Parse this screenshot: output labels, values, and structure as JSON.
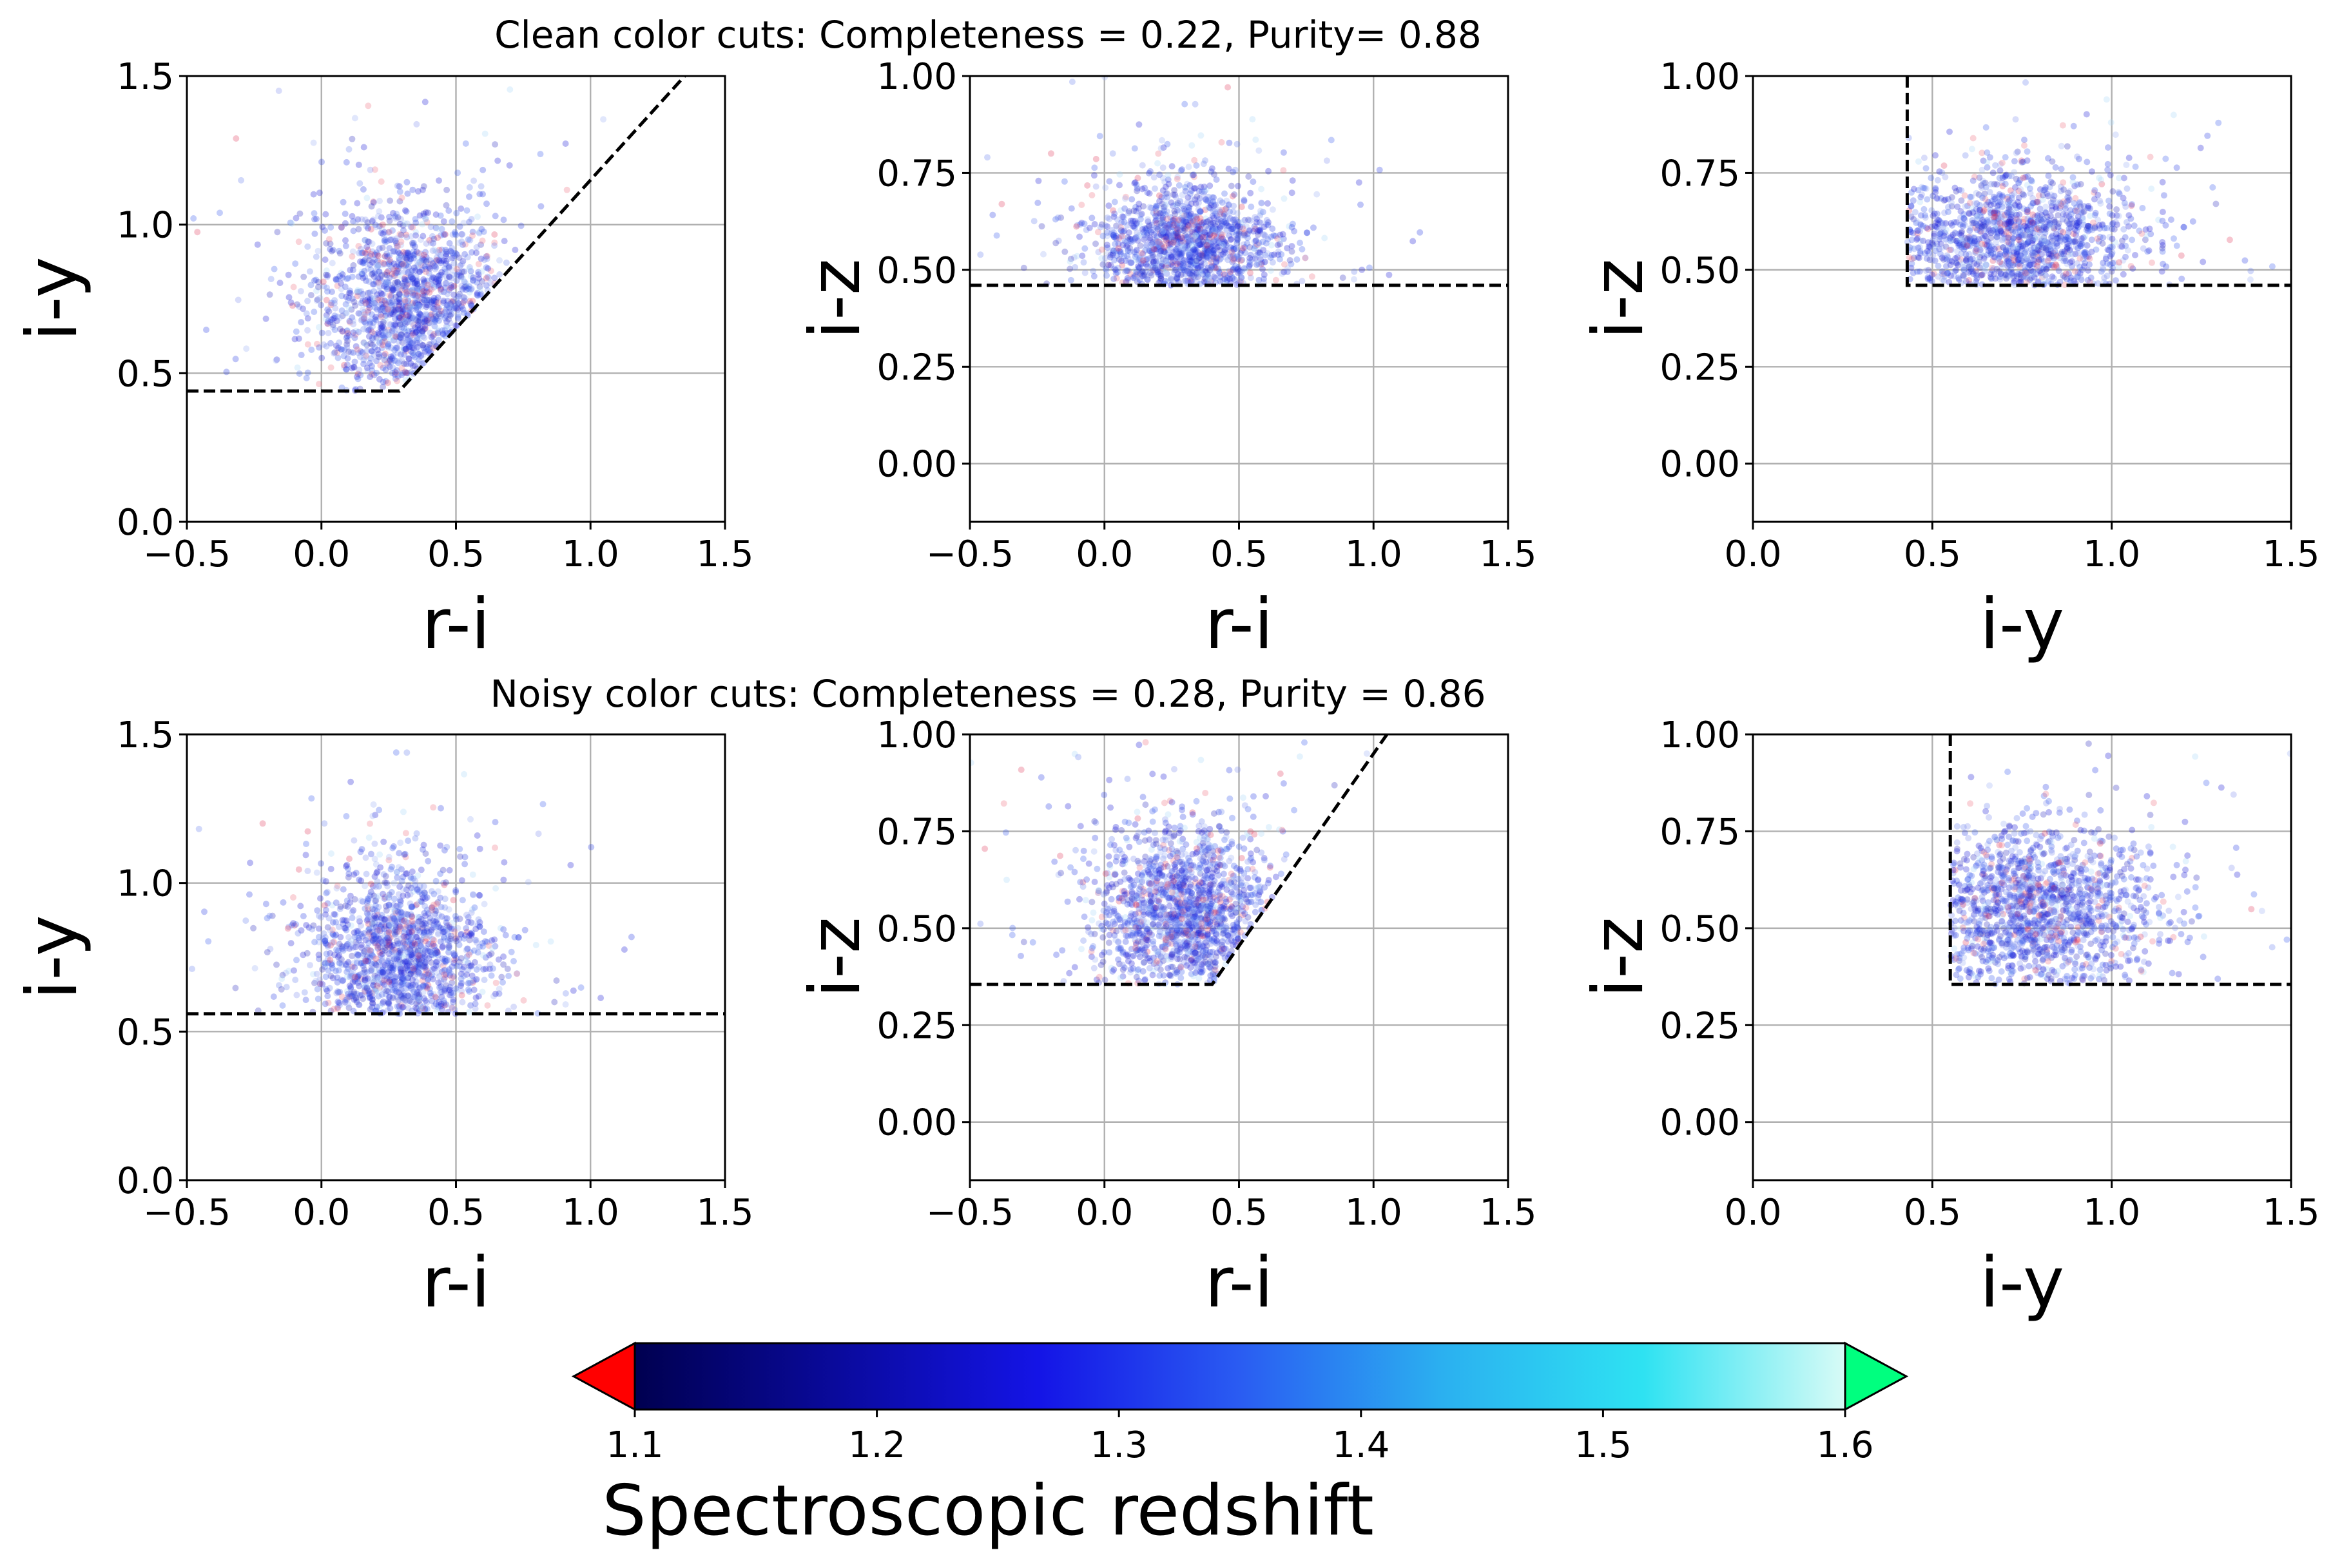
{
  "figure": {
    "row_titles": [
      "Clean color cuts: Completeness = 0.22, Purity= 0.88",
      "Noisy color cuts: Completeness = 0.28, Purity = 0.86"
    ]
  },
  "chart_data": [
    {
      "type": "scatter",
      "row": 0,
      "col": 0,
      "xlabel": "r-i",
      "ylabel": "i-y",
      "xlim": [
        -0.5,
        1.5
      ],
      "ylim": [
        0.0,
        1.5
      ],
      "xticks": [
        "−0.5",
        "0.0",
        "0.5",
        "1.0",
        "1.5"
      ],
      "xtick_values": [
        -0.5,
        0.0,
        0.5,
        1.0,
        1.5
      ],
      "yticks": [
        "0.0",
        "0.5",
        "1.0",
        "1.5"
      ],
      "ytick_values": [
        0.0,
        0.5,
        1.0,
        1.5
      ],
      "grid": true,
      "cut_lines": [
        [
          [
            -0.5,
            0.44
          ],
          [
            0.29,
            0.44
          ],
          [
            1.35,
            1.5
          ]
        ]
      ],
      "cloud": {
        "x_center": 0.33,
        "x_sd": 0.17,
        "y_center": 0.72,
        "y_sd": 0.17,
        "n": 1500,
        "cut": {
          "ymin": 0.44,
          "slope_line": [
            0.29,
            0.44,
            1.0
          ]
        }
      }
    },
    {
      "type": "scatter",
      "row": 0,
      "col": 1,
      "xlabel": "r-i",
      "ylabel": "i-z",
      "xlim": [
        -0.5,
        1.5
      ],
      "ylim": [
        -0.15,
        1.0
      ],
      "xticks": [
        "−0.5",
        "0.0",
        "0.5",
        "1.0",
        "1.5"
      ],
      "xtick_values": [
        -0.5,
        0.0,
        0.5,
        1.0,
        1.5
      ],
      "yticks": [
        "0.00",
        "0.25",
        "0.50",
        "0.75",
        "1.00"
      ],
      "ytick_values": [
        0.0,
        0.25,
        0.5,
        0.75,
        1.0
      ],
      "grid": true,
      "cut_lines": [
        [
          [
            -0.5,
            0.46
          ],
          [
            1.5,
            0.46
          ]
        ]
      ],
      "cloud": {
        "x_center": 0.3,
        "x_sd": 0.16,
        "y_center": 0.56,
        "y_sd": 0.08,
        "n": 1400,
        "cut": {
          "ymin": 0.46
        }
      }
    },
    {
      "type": "scatter",
      "row": 0,
      "col": 2,
      "xlabel": "i-y",
      "ylabel": "i-z",
      "xlim": [
        0.0,
        1.5
      ],
      "ylim": [
        -0.15,
        1.0
      ],
      "xticks": [
        "0.0",
        "0.5",
        "1.0",
        "1.5"
      ],
      "xtick_values": [
        0.0,
        0.5,
        1.0,
        1.5
      ],
      "yticks": [
        "0.00",
        "0.25",
        "0.50",
        "0.75",
        "1.00"
      ],
      "ytick_values": [
        0.0,
        0.25,
        0.5,
        0.75,
        1.0
      ],
      "grid": true,
      "cut_lines": [
        [
          [
            0.43,
            1.0
          ],
          [
            0.43,
            0.46
          ],
          [
            1.5,
            0.46
          ]
        ]
      ],
      "cloud": {
        "x_center": 0.72,
        "x_sd": 0.17,
        "y_center": 0.57,
        "y_sd": 0.09,
        "n": 1400,
        "cut": {
          "ymin": 0.46,
          "xmin": 0.43
        }
      }
    },
    {
      "type": "scatter",
      "row": 1,
      "col": 0,
      "xlabel": "r-i",
      "ylabel": "i-y",
      "xlim": [
        -0.5,
        1.5
      ],
      "ylim": [
        0.0,
        1.5
      ],
      "xticks": [
        "−0.5",
        "0.0",
        "0.5",
        "1.0",
        "1.5"
      ],
      "xtick_values": [
        -0.5,
        0.0,
        0.5,
        1.0,
        1.5
      ],
      "yticks": [
        "0.0",
        "0.5",
        "1.0",
        "1.5"
      ],
      "ytick_values": [
        0.0,
        0.5,
        1.0,
        1.5
      ],
      "grid": true,
      "cut_lines": [
        [
          [
            -0.5,
            0.56
          ],
          [
            1.5,
            0.56
          ]
        ]
      ],
      "cloud": {
        "x_center": 0.28,
        "x_sd": 0.16,
        "y_center": 0.75,
        "y_sd": 0.15,
        "n": 1500,
        "cut": {
          "ymin": 0.56
        }
      }
    },
    {
      "type": "scatter",
      "row": 1,
      "col": 1,
      "xlabel": "r-i",
      "ylabel": "i-z",
      "xlim": [
        -0.5,
        1.5
      ],
      "ylim": [
        -0.15,
        1.0
      ],
      "xticks": [
        "−0.5",
        "0.0",
        "0.5",
        "1.0",
        "1.5"
      ],
      "xtick_values": [
        -0.5,
        0.0,
        0.5,
        1.0,
        1.5
      ],
      "yticks": [
        "0.00",
        "0.25",
        "0.50",
        "0.75",
        "1.00"
      ],
      "ytick_values": [
        0.0,
        0.25,
        0.5,
        0.75,
        1.0
      ],
      "grid": true,
      "cut_lines": [
        [
          [
            -0.5,
            0.355
          ],
          [
            0.4,
            0.355
          ],
          [
            1.05,
            1.0
          ]
        ]
      ],
      "cloud": {
        "x_center": 0.3,
        "x_sd": 0.16,
        "y_center": 0.54,
        "y_sd": 0.11,
        "n": 1500,
        "cut": {
          "ymin": 0.355,
          "slope_line": [
            0.4,
            0.355,
            0.99
          ]
        }
      }
    },
    {
      "type": "scatter",
      "row": 1,
      "col": 2,
      "xlabel": "i-y",
      "ylabel": "i-z",
      "xlim": [
        0.0,
        1.5
      ],
      "ylim": [
        -0.15,
        1.0
      ],
      "xticks": [
        "0.0",
        "0.5",
        "1.0",
        "1.5"
      ],
      "xtick_values": [
        0.0,
        0.5,
        1.0,
        1.5
      ],
      "yticks": [
        "0.00",
        "0.25",
        "0.50",
        "0.75",
        "1.00"
      ],
      "ytick_values": [
        0.0,
        0.25,
        0.5,
        0.75,
        1.0
      ],
      "grid": true,
      "cut_lines": [
        [
          [
            0.55,
            1.0
          ],
          [
            0.55,
            0.355
          ],
          [
            1.5,
            0.355
          ]
        ]
      ],
      "cloud": {
        "x_center": 0.78,
        "x_sd": 0.17,
        "y_center": 0.54,
        "y_sd": 0.11,
        "n": 1500,
        "cut": {
          "ymin": 0.355,
          "xmin": 0.55
        }
      }
    }
  ],
  "colorbar": {
    "label": "Spectroscopic redshift",
    "range": [
      1.1,
      1.6
    ],
    "ticks": [
      "1.1",
      "1.2",
      "1.3",
      "1.4",
      "1.5",
      "1.6"
    ],
    "tick_values": [
      1.1,
      1.2,
      1.3,
      1.4,
      1.5,
      1.6
    ],
    "extend": "both",
    "under_color": "#ff0000",
    "over_color": "#00ff7f",
    "colormap_stops": [
      "#000050",
      "#0a0a9c",
      "#1414e6",
      "#2a5cf2",
      "#2bb0f0",
      "#2ee2f2",
      "#d8fbf6"
    ]
  }
}
